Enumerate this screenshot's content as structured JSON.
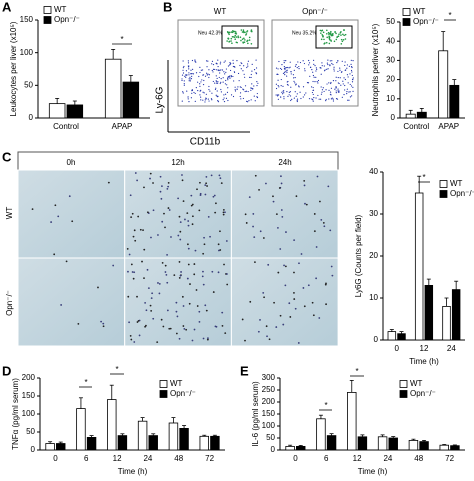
{
  "figure": {
    "flow": {
      "columns": [
        "WT",
        "Opn⁻/⁻"
      ],
      "gates": [
        "Neu 42.3%",
        "Neu 35.2%"
      ],
      "ylabel": "Ly-6G",
      "xlabel": "CD11b",
      "panel_label": "B"
    },
    "histology": {
      "panel_label": "C",
      "columns": [
        "0h",
        "12h",
        "24h"
      ],
      "rows": [
        "WT",
        "Opn⁻/⁻"
      ]
    }
  },
  "chart_data": [
    {
      "type": "bar",
      "panel_label": "A",
      "ylabel": "Leukocytes per liver (x10⁵)",
      "categories": [
        "Control",
        "APAP"
      ],
      "series": [
        {
          "name": "WT",
          "color": "#ffffff",
          "values": [
            22,
            90
          ],
          "errors": [
            8,
            15
          ]
        },
        {
          "name": "Opn⁻/⁻",
          "color": "#000000",
          "values": [
            20,
            55
          ],
          "errors": [
            6,
            10
          ]
        }
      ],
      "ylim": [
        0,
        150
      ],
      "yticks": [
        0,
        50,
        100,
        150
      ],
      "annotations": [
        "*"
      ]
    },
    {
      "type": "bar",
      "ylabel": "Neutrophils perliver (x10⁵)",
      "categories": [
        "Control",
        "APAP"
      ],
      "series": [
        {
          "name": "WT",
          "color": "#ffffff",
          "values": [
            2,
            35
          ],
          "errors": [
            2,
            10
          ]
        },
        {
          "name": "Opn⁻/⁻",
          "color": "#000000",
          "values": [
            3,
            17
          ],
          "errors": [
            2,
            3
          ]
        }
      ],
      "ylim": [
        0,
        50
      ],
      "yticks": [
        0,
        10,
        20,
        30,
        40,
        50
      ],
      "annotations": [
        "*"
      ]
    },
    {
      "type": "bar",
      "ylabel": "Ly6G (Counts per field)",
      "xlabel": "Time (h)",
      "categories": [
        "0",
        "12",
        "24"
      ],
      "series": [
        {
          "name": "WT",
          "color": "#ffffff",
          "values": [
            2,
            35,
            8
          ],
          "errors": [
            0.5,
            4,
            2
          ]
        },
        {
          "name": "Opn⁻/⁻",
          "color": "#000000",
          "values": [
            1.5,
            13,
            12
          ],
          "errors": [
            0.5,
            1.5,
            2
          ]
        }
      ],
      "ylim": [
        0,
        40
      ],
      "yticks": [
        0,
        10,
        20,
        30,
        40
      ],
      "annotations": [
        "*"
      ]
    },
    {
      "type": "bar",
      "panel_label": "D",
      "ylabel": "TNFα (pg/ml serum)",
      "xlabel": "Time (h)",
      "categories": [
        "0",
        "6",
        "12",
        "24",
        "48",
        "72"
      ],
      "series": [
        {
          "name": "WT",
          "color": "#ffffff",
          "values": [
            18,
            115,
            140,
            80,
            75,
            38
          ],
          "errors": [
            5,
            30,
            40,
            10,
            15,
            3
          ]
        },
        {
          "name": "Opn⁻/⁻",
          "color": "#000000",
          "values": [
            18,
            35,
            40,
            40,
            60,
            38
          ],
          "errors": [
            4,
            5,
            5,
            5,
            8,
            3
          ]
        }
      ],
      "ylim": [
        0,
        200
      ],
      "yticks": [
        0,
        50,
        100,
        150,
        200
      ],
      "annotations": [
        "*",
        "*"
      ]
    },
    {
      "type": "bar",
      "panel_label": "E",
      "ylabel": "IL-6 (pg/ml serum)",
      "xlabel": "Time (h)",
      "categories": [
        "0",
        "6",
        "12",
        "24",
        "48",
        "72"
      ],
      "series": [
        {
          "name": "WT",
          "color": "#ffffff",
          "values": [
            15,
            130,
            240,
            55,
            40,
            20
          ],
          "errors": [
            5,
            15,
            50,
            8,
            5,
            3
          ]
        },
        {
          "name": "Opn⁻/⁻",
          "color": "#000000",
          "values": [
            15,
            60,
            55,
            50,
            35,
            18
          ],
          "errors": [
            4,
            8,
            8,
            6,
            5,
            3
          ]
        }
      ],
      "ylim": [
        0,
        300
      ],
      "yticks": [
        0,
        50,
        100,
        150,
        200,
        250,
        300
      ],
      "annotations": [
        "*",
        "*"
      ]
    }
  ]
}
